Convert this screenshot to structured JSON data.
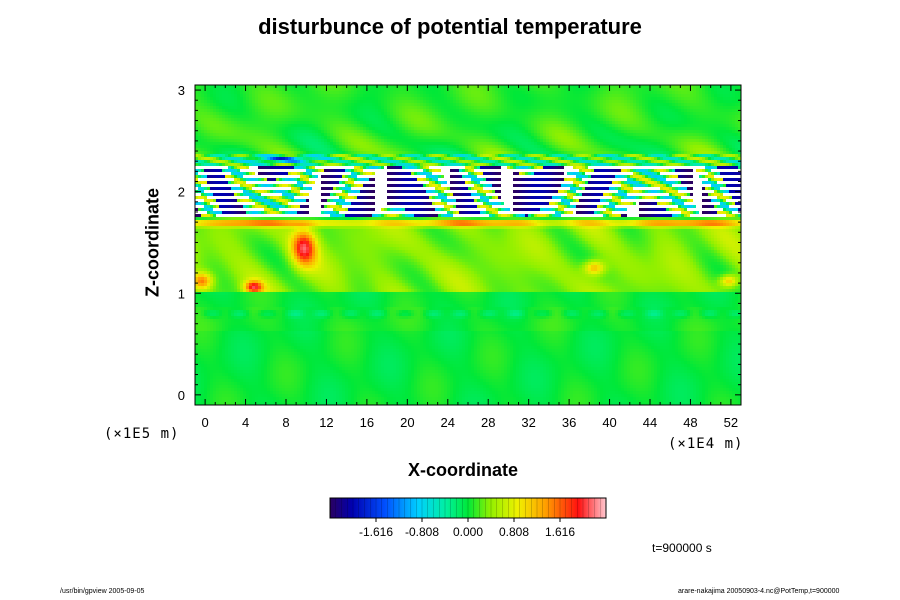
{
  "chart_data": {
    "type": "heatmap",
    "title": "disturbunce of potential temperature",
    "xlabel": "X-coordinate",
    "ylabel": "Z-coordinate",
    "x_unit": "(×1E4 m)",
    "y_unit": "(×1E5 m)",
    "xlim": [
      -1,
      53
    ],
    "ylim": [
      -0.1,
      3.05
    ],
    "x_ticks": [
      "0",
      "4",
      "8",
      "12",
      "16",
      "20",
      "24",
      "28",
      "32",
      "36",
      "40",
      "44",
      "48",
      "52"
    ],
    "y_ticks": [
      "0",
      "1",
      "2",
      "3"
    ],
    "colorbar": {
      "ticks": [
        "-1.616",
        "-0.808",
        "0.000",
        "0.808",
        "1.616"
      ],
      "tick_values": [
        -1.616,
        -0.808,
        0.0,
        0.808,
        1.616
      ],
      "range": [
        -2.424,
        2.424
      ]
    },
    "features": [
      {
        "z_range": [
          0,
          0.85
        ],
        "description": "mostly near-zero (green)"
      },
      {
        "z_range": [
          1.0,
          1.72
        ],
        "description": "weak positive (yellow/orange) with warm cells near x=8-10"
      },
      {
        "z_range": [
          1.72,
          2.25
        ],
        "description": "strong oscillating layer, values exceed color range (white)"
      },
      {
        "z_range": [
          2.25,
          3.0
        ],
        "description": "near-zero green with negative blue streak near x=8"
      }
    ]
  },
  "time_label": "t=900000 s",
  "footer_left": "/usr/bin/gpview 2005-09-05",
  "footer_right": "arare-nakajima 20050903-4.nc@PotTemp,t=900000"
}
